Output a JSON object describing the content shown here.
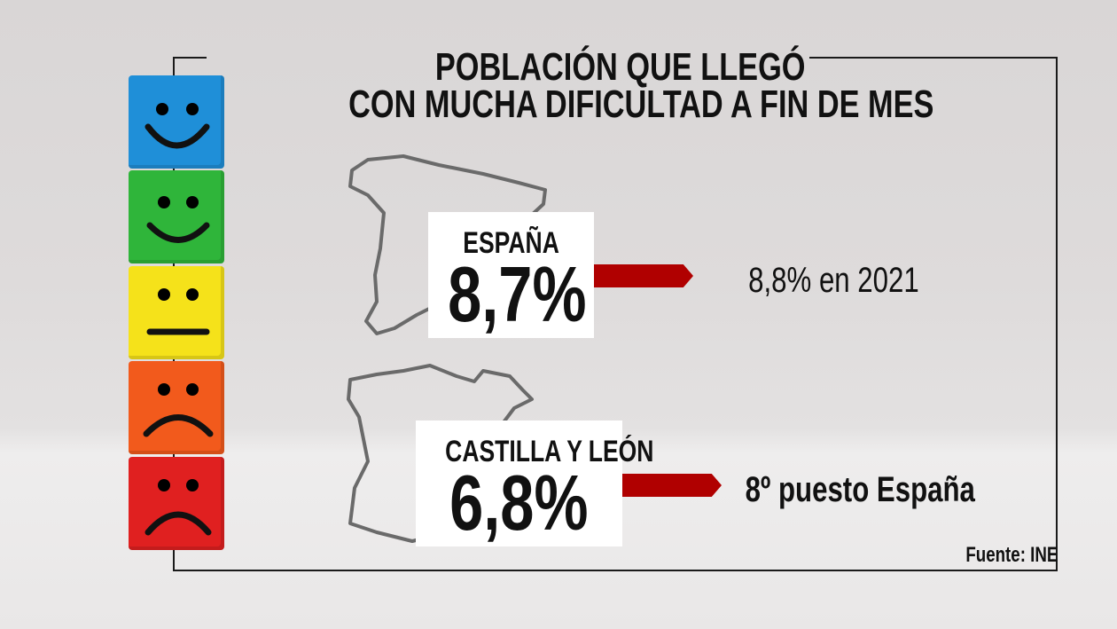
{
  "title": {
    "line1": "POBLACIÓN QUE LLEGÓ",
    "line2": "CON MUCHA DIFICULTAD A FIN DE MES"
  },
  "spain": {
    "label": "ESPAÑA",
    "value": "8,7%",
    "comparison": "8,8%  en 2021"
  },
  "region": {
    "label": "CASTILLA Y LEÓN",
    "value": "6,8%",
    "comparison": "8º puesto España"
  },
  "source": "Fuente: INE",
  "colors": {
    "arrow": "#b00000",
    "blue": "#1f8fd8",
    "green": "#2fb53a",
    "yellow": "#f5e21a",
    "orange": "#f25a1c",
    "red": "#e02020"
  },
  "icons": [
    "very-happy-face-icon",
    "happy-face-icon",
    "neutral-face-icon",
    "sad-face-icon",
    "very-sad-face-icon",
    "spain-map-icon",
    "castilla-y-leon-map-icon"
  ]
}
